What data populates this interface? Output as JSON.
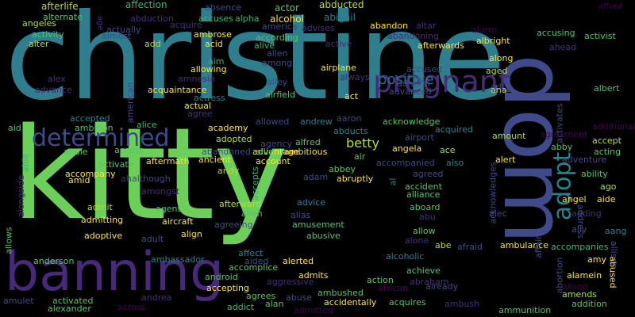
{
  "words": {
    "christine": "christine",
    "kitty": "kitty",
    "dom": "dom",
    "banning": "banning",
    "pregnant": "pregnant",
    "determined": "determined",
    "positive": "positive",
    "adopt": "adopt",
    "betty": "betty",
    "afterlife": "afterlife",
    "affection": "affection",
    "absence": "absence",
    "actor": "actor",
    "abducted": "abducted",
    "afford": "afford",
    "alternate": "alternate",
    "abduction": "abduction",
    "accuses": "accuses",
    "alpha": "alpha",
    "alcohol": "alcohol",
    "abigail": "abigail",
    "angeles": "angeles",
    "acquire": "acquire",
    "america": "america",
    "advises": "advises",
    "abandon": "abandon",
    "altar": "altar",
    "alarm": "alarm",
    "activity": "activity",
    "actually": "actually",
    "almost": "almost",
    "ambrose": "ambrose",
    "according": "according",
    "abandoning": "abandoning",
    "accusing": "accusing",
    "activist": "activist",
    "aging": "aging",
    "alter": "alter",
    "add": "add",
    "acid": "acid",
    "alive": "alive",
    "active": "active",
    "afterwards": "afterwards",
    "albright": "albright",
    "ahead": "ahead",
    "allen": "allen",
    "aim": "aim",
    "among": "among",
    "airplane": "airplane",
    "along": "along",
    "allowing": "allowing",
    "always": "always",
    "aged": "aged",
    "alex": "alex",
    "amnesia": "amnesia",
    "advance": "advance",
    "alley": "alley",
    "admiral": "admiral",
    "accused": "accused",
    "ad": "ad",
    "acquaintance": "acquaintance",
    "airfield": "airfield",
    "advanced": "advanced",
    "ana": "ana",
    "albert": "albert",
    "actress": "actress",
    "act": "act",
    "actual": "actual",
    "accepted": "accepted",
    "agree": "agree",
    "aaron": "aaron",
    "acknowledge": "acknowledge",
    "activates": "activates",
    "aid": "aid",
    "ambition": "ambition",
    "alice": "alice",
    "academy": "academy",
    "allowed": "allowed",
    "andrew": "andrew",
    "abducts": "abducts",
    "acquired": "acquired",
    "additional": "additional",
    "agreement": "agreement",
    "amount": "amount",
    "adopted": "adopted",
    "agency": "agency",
    "advantage": "advantage",
    "airport": "airport",
    "accept": "accept",
    "andie": "andie",
    "access": "access",
    "allie": "allie",
    "alfred": "alfred",
    "ambitious": "ambitious",
    "angela": "angela",
    "ace": "ace",
    "abby": "abby",
    "acting": "acting",
    "aftermath": "aftermath",
    "account": "account",
    "air": "air",
    "alert": "alert",
    "adventure": "adventure",
    "able": "able",
    "activate": "activate",
    "ancient": "ancient",
    "abbey": "abbey",
    "accompanied": "accompanied",
    "also": "also",
    "accompany": "accompany",
    "although": "although",
    "andy": "andy",
    "adam": "adam",
    "abruptly": "abruptly",
    "agreed": "agreed",
    "ability": "ability",
    "amid": "amid",
    "ah": "ah",
    "abandoned": "abandoned",
    "accepts": "accepts",
    "al": "al",
    "accident": "accident",
    "alliance": "alliance",
    "ago": "ago",
    "amongst": "amongst",
    "angel": "angel",
    "aide": "aide",
    "alongside": "alongside",
    "admit": "admit",
    "agent": "agent",
    "afterward": "afterward",
    "advice": "advice",
    "aboard": "aboard",
    "acknowledges": "acknowledges",
    "alec": "alec",
    "adding": "adding",
    "admitting": "admitting",
    "aircraft": "aircraft",
    "alien": "alien",
    "alias": "alias",
    "abu": "abu",
    "ally": "ally",
    "aang": "aang",
    "adoptive": "adoptive",
    "agreeing": "agreeing",
    "amusement": "amusement",
    "allow": "allow",
    "address": "address",
    "allows": "allows",
    "adult": "adult",
    "align": "align",
    "abusive": "abusive",
    "alone": "alone",
    "abe": "abe",
    "afraid": "afraid",
    "ambulance": "ambulance",
    "accompanies": "accompanies",
    "anderson": "anderson",
    "ambassador": "ambassador",
    "affect": "affect",
    "aided": "aided",
    "alerted": "alerted",
    "alcoholic": "alcoholic",
    "affair": "affair",
    "amy": "amy",
    "allison": "allison",
    "accomplice": "accomplice",
    "achieve": "achieve",
    "alamein": "alamein",
    "abused": "abused",
    "android": "android",
    "admits": "admits",
    "abraham": "abraham",
    "abortion": "abortion",
    "aggressive": "aggressive",
    "action": "action",
    "african": "african",
    "already": "already",
    "alison": "alison",
    "accepting": "accepting",
    "ambushed": "ambushed",
    "amends": "amends",
    "amulet": "amulet",
    "activated": "activated",
    "andrea": "andrea",
    "agrees": "agrees",
    "abuse": "abuse",
    "accidentally": "accidentally",
    "acquires": "acquires",
    "ambush": "ambush",
    "addition": "addition",
    "alexander": "alexander",
    "across": "across",
    "addict": "addict",
    "alan": "alan",
    "admitted": "admitted",
    "ammunition": "ammunition",
    "american": "american",
    "age": "age"
  }
}
